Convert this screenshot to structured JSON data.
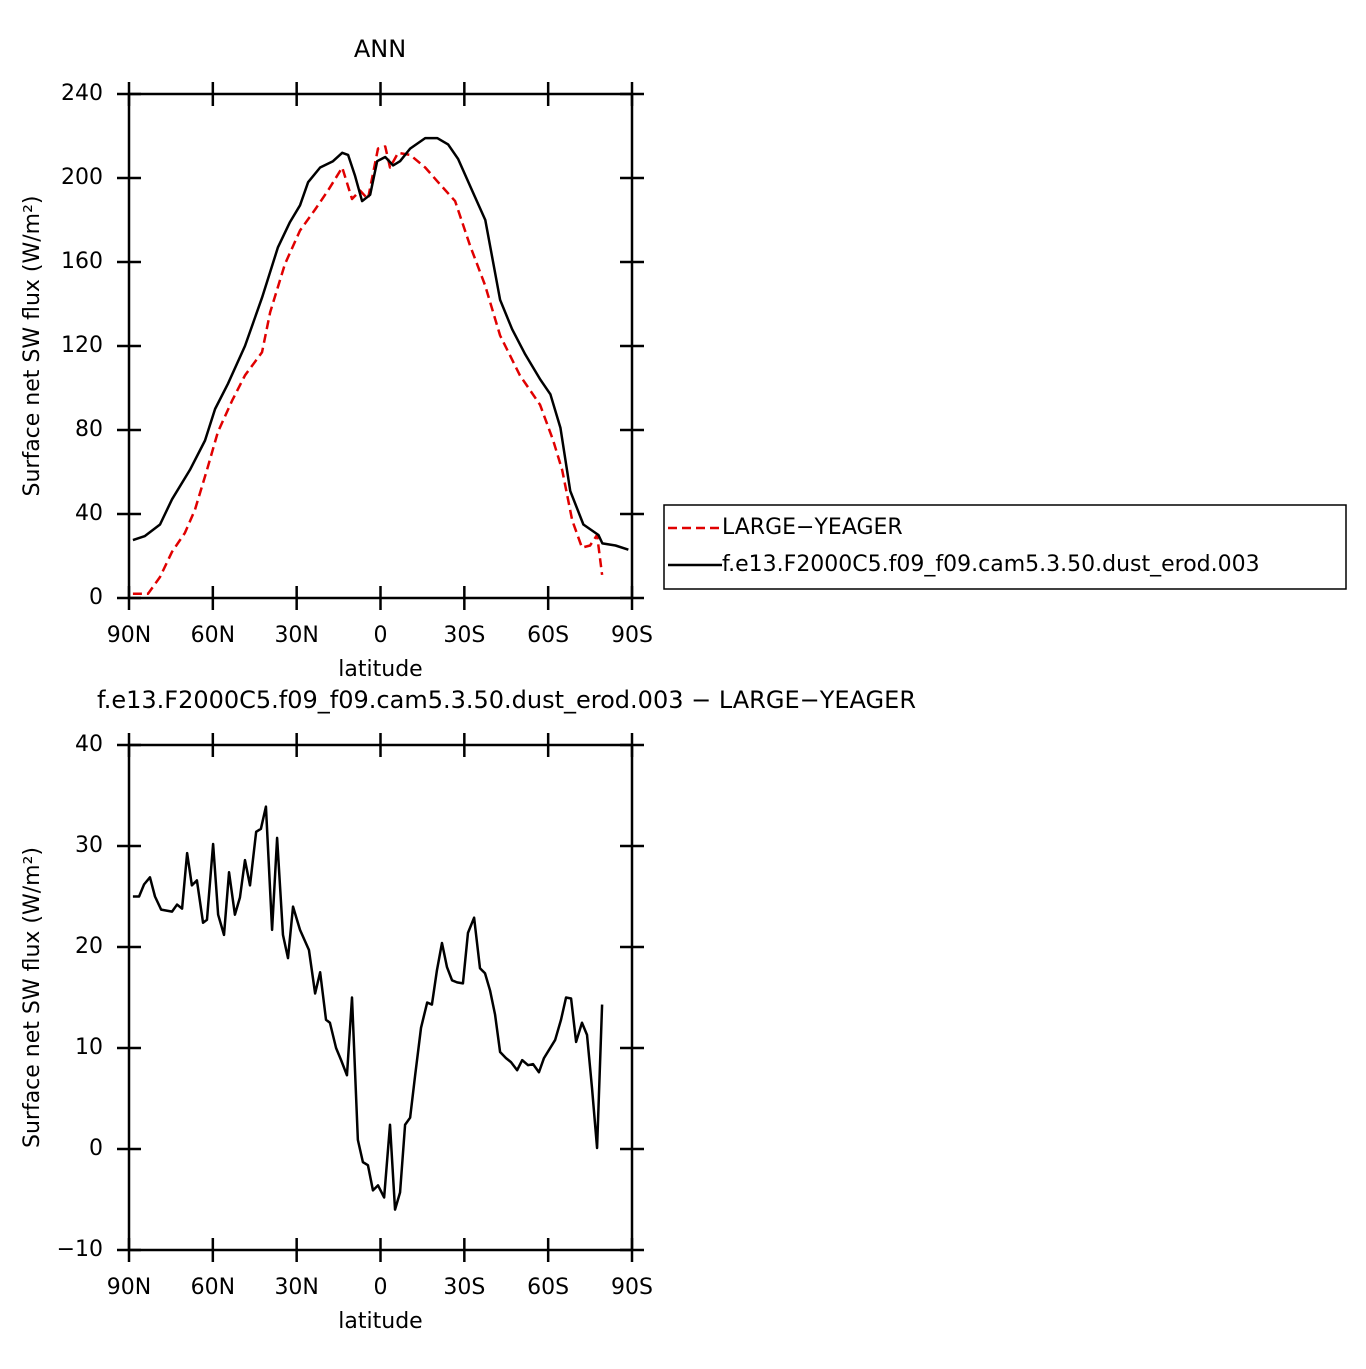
{
  "chart_data": [
    {
      "type": "line",
      "title": "ANN",
      "xlabel": "latitude",
      "ylabel": "Surface net SW flux (W/m²)",
      "xlim": [
        90,
        -90
      ],
      "xticks": [
        {
          "value": 90,
          "label": "90N"
        },
        {
          "value": 60,
          "label": "60N"
        },
        {
          "value": 30,
          "label": "30N"
        },
        0,
        {
          "value": -30,
          "label": "30S"
        },
        {
          "value": -60,
          "label": "60S"
        },
        {
          "value": -90,
          "label": "90S"
        }
      ],
      "ylim": [
        0,
        240
      ],
      "yticks": [
        0,
        40,
        80,
        120,
        160,
        200,
        240
      ],
      "legend": "outside-right",
      "series": [
        {
          "name": "LARGE−YEAGER",
          "color": "#e00000",
          "line_style": "dashed",
          "x": [
            88.6,
            83.2,
            78.9,
            74.6,
            70.0,
            66.4,
            62.1,
            58.2,
            53.1,
            48.5,
            42.4,
            39.5,
            34.2,
            28.8,
            23.4,
            18.8,
            13.7,
            10.2,
            7.3,
            4.5,
            0.9,
            -1.7,
            -3.4,
            -6.3,
            -10.6,
            -16.0,
            -21.3,
            -26.7,
            -32.0,
            -37.4,
            -42.8,
            -49.9,
            -57.1,
            -61.8,
            -65.0,
            -68.6,
            -72.1,
            -75.0,
            -77.5,
            -79.3
          ],
          "values": [
            2,
            2,
            10,
            22,
            31,
            42,
            61,
            79,
            94,
            106,
            117,
            136,
            159,
            175,
            185,
            194,
            205,
            190,
            194,
            190,
            214,
            215,
            205,
            212,
            211,
            205,
            197,
            189,
            168,
            149,
            125,
            106,
            92,
            75,
            61,
            37,
            24,
            25,
            30,
            11
          ]
        },
        {
          "name": "f.e13.F2000C5.f09_f09.cam5.3.50.dust_erod.003",
          "color": "#000000",
          "line_style": "solid",
          "x": [
            88.6,
            84.3,
            78.9,
            74.6,
            68.2,
            62.8,
            59.2,
            54.6,
            48.5,
            42.4,
            36.7,
            32.4,
            28.8,
            25.9,
            21.6,
            17.0,
            13.7,
            11.6,
            9.1,
            6.6,
            3.7,
            1.2,
            -1.7,
            -4.5,
            -7.0,
            -10.6,
            -16.0,
            -20.3,
            -24.2,
            -27.8,
            -32.8,
            -37.5,
            -42.8,
            -47.1,
            -51.8,
            -57.2,
            -60.8,
            -64.4,
            -67.9,
            -72.6,
            -78.0,
            -79.4,
            -84.1,
            -88.7
          ],
          "values": [
            27.6,
            29.5,
            35,
            47,
            61,
            75,
            90,
            102,
            120,
            143,
            167,
            179,
            187,
            198,
            205,
            208,
            212,
            211,
            201,
            189,
            192,
            208,
            210,
            206,
            208,
            214,
            219,
            219,
            216,
            209,
            194,
            180,
            142,
            128,
            116,
            104,
            97,
            81,
            51,
            35,
            30,
            26,
            25,
            23
          ]
        }
      ]
    },
    {
      "type": "line",
      "title": "f.e13.F2000C5.f09_f09.cam5.3.50.dust_erod.003 − LARGE−YEAGER",
      "xlabel": "latitude",
      "ylabel": "Surface net SW flux (W/m²)",
      "xlim": [
        90,
        -90
      ],
      "xticks": [
        {
          "value": 90,
          "label": "90N"
        },
        {
          "value": 60,
          "label": "60N"
        },
        {
          "value": 30,
          "label": "30N"
        },
        0,
        {
          "value": -30,
          "label": "30S"
        },
        {
          "value": -60,
          "label": "60S"
        },
        {
          "value": -90,
          "label": "90S"
        }
      ],
      "ylim": [
        -10,
        40
      ],
      "yticks": [
        {
          "value": -10,
          "label": "−10"
        },
        0,
        10,
        20,
        30,
        40
      ],
      "color": "#000000",
      "x": [
        88.6,
        86.4,
        84.6,
        82.5,
        80.7,
        78.5,
        74.6,
        72.8,
        71.0,
        69.2,
        67.5,
        65.7,
        63.5,
        62.1,
        59.9,
        58.1,
        56.0,
        54.2,
        52.1,
        50.3,
        48.5,
        46.7,
        44.5,
        42.8,
        41.0,
        38.8,
        37.0,
        34.9,
        33.1,
        31.3,
        28.8,
        25.6,
        23.4,
        21.6,
        19.5,
        18.1,
        15.9,
        14.1,
        12.0,
        10.2,
        8.1,
        6.3,
        4.5,
        2.7,
        0.9,
        -1.3,
        -3.4,
        -5.2,
        -7.0,
        -8.8,
        -10.6,
        -12.4,
        -14.5,
        -16.7,
        -18.4,
        -20.2,
        -22.0,
        -23.8,
        -25.6,
        -27.4,
        -29.5,
        -31.3,
        -33.5,
        -35.6,
        -37.4,
        -39.2,
        -41.0,
        -42.8,
        -44.9,
        -46.7,
        -48.9,
        -50.7,
        -52.8,
        -54.6,
        -56.7,
        -58.5,
        -62.5,
        -64.6,
        -66.4,
        -68.2,
        -70.0,
        -72.1,
        -73.9,
        -75.7,
        -77.5,
        -79.3
      ],
      "values": [
        25.0,
        25.0,
        26.2,
        26.9,
        25.0,
        23.7,
        23.5,
        24.2,
        23.8,
        29.3,
        26.1,
        26.6,
        22.4,
        22.7,
        30.2,
        23.2,
        21.2,
        27.4,
        23.2,
        24.9,
        28.6,
        26.1,
        31.4,
        31.7,
        33.9,
        21.7,
        30.8,
        21.2,
        18.9,
        24.0,
        21.7,
        19.7,
        15.4,
        17.5,
        12.8,
        12.5,
        10.0,
        8.8,
        7.3,
        15.0,
        0.9,
        -1.3,
        -1.6,
        -4.1,
        -3.6,
        -4.8,
        2.4,
        -6.0,
        -4.3,
        2.4,
        3.1,
        7.3,
        12.0,
        14.5,
        14.3,
        17.7,
        20.4,
        18.0,
        16.7,
        16.5,
        16.4,
        21.4,
        22.9,
        17.9,
        17.4,
        15.7,
        13.3,
        9.6,
        9.0,
        8.6,
        7.8,
        8.8,
        8.3,
        8.4,
        7.6,
        9.0,
        10.8,
        12.8,
        15.0,
        14.9,
        10.6,
        12.5,
        11.3,
        6.0,
        0.1,
        14.3
      ]
    }
  ]
}
